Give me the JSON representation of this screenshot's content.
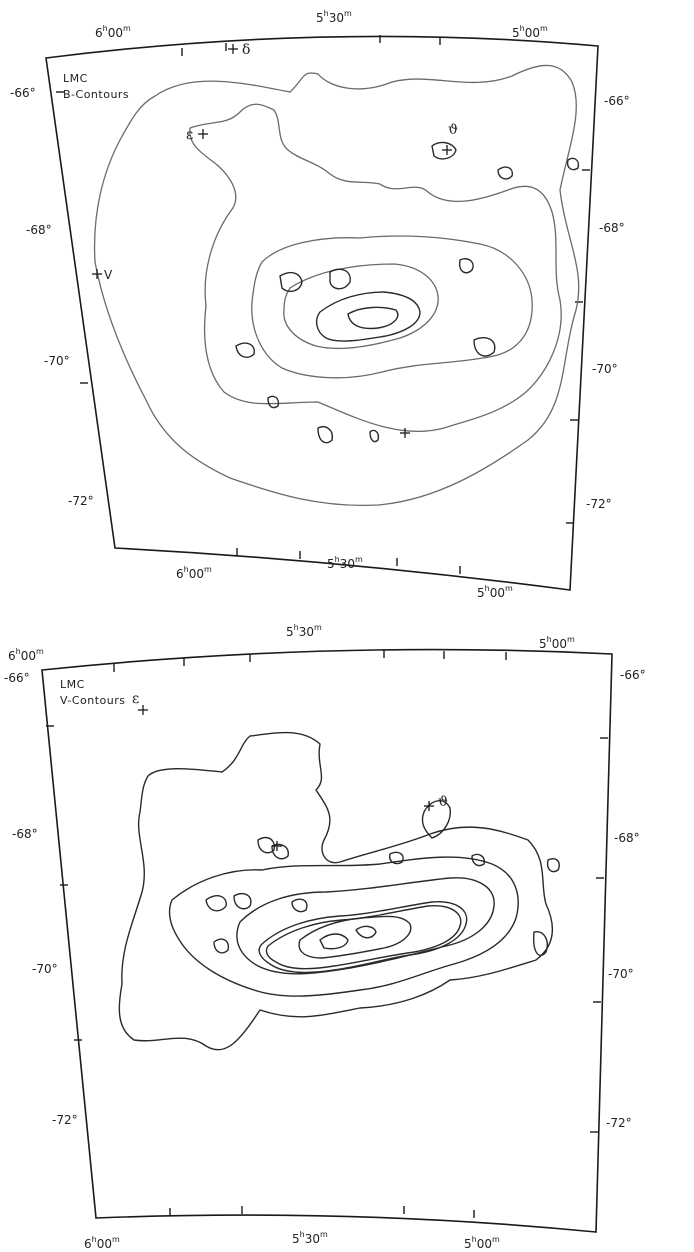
{
  "panels": [
    {
      "id": "b",
      "title_line1": "LMC",
      "title_line2": "B-Contours",
      "ra_top": {
        "left": "6",
        "mid": "5",
        "right": "5",
        "left_min": "00",
        "mid_min": "30",
        "right_min": "00"
      },
      "ra_bottom": {
        "left": "6",
        "mid": "5",
        "right": "5",
        "left_min": "00",
        "mid_min": "30",
        "right_min": "00"
      },
      "dec_left": [
        "-66°",
        "-68°",
        "-70°",
        "-72°"
      ],
      "dec_right": [
        "-66°",
        "-68°",
        "-70°",
        "-72°"
      ],
      "stars": {
        "delta": "δ",
        "epsilon": "ε",
        "v": "V",
        "theta": "ϑ"
      }
    },
    {
      "id": "v",
      "title_line1": "LMC",
      "title_line2": "V-Contours",
      "ra_top": {
        "left": "6",
        "mid": "5",
        "right": "5",
        "left_min": "00",
        "mid_min": "30",
        "right_min": "00"
      },
      "ra_bottom": {
        "left": "6",
        "mid": "5",
        "right": "5",
        "left_min": "00",
        "mid_min": "30",
        "right_min": "00"
      },
      "dec_left": [
        "-66°",
        "-68°",
        "-70°",
        "-72°"
      ],
      "dec_right": [
        "-66°",
        "-68°",
        "-70°",
        "-72°"
      ],
      "stars": {
        "epsilon": "ε",
        "theta": "ϑ"
      }
    }
  ],
  "hour_mark": "h",
  "minute_mark": "m"
}
